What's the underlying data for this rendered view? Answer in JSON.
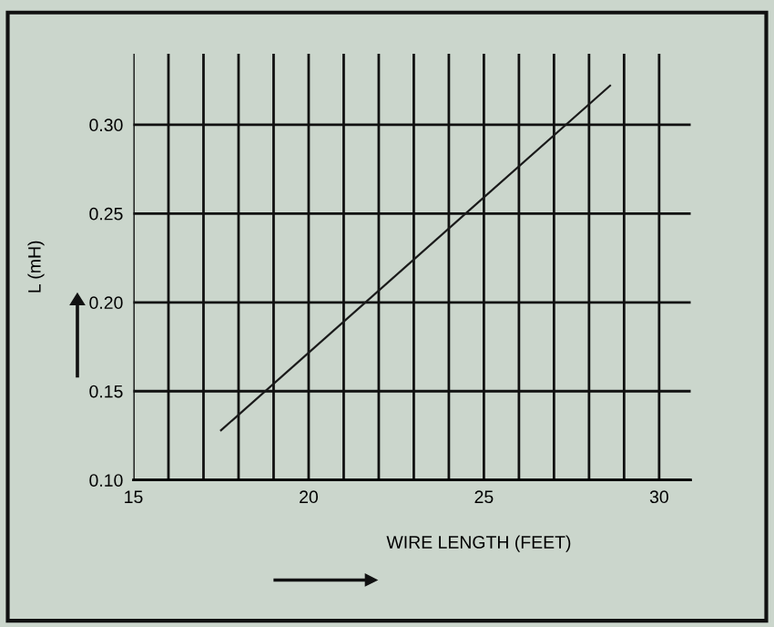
{
  "chart_data": {
    "type": "line",
    "xlabel": "WIRE LENGTH (FEET)",
    "ylabel": "L (mH)",
    "x": [
      17.5,
      28.6
    ],
    "series": [
      {
        "color": "#1a1a1a",
        "values": [
          0.128,
          0.322
        ]
      }
    ],
    "xlim": [
      15,
      30.9
    ],
    "ylim": [
      0.1,
      0.34
    ],
    "xticks": [
      15,
      {
        "value": 16,
        "label": null
      },
      {
        "value": 17,
        "label": null
      },
      {
        "value": 18,
        "label": null
      },
      {
        "value": 19,
        "label": null
      },
      20,
      {
        "value": 21,
        "label": null
      },
      {
        "value": 22,
        "label": null
      },
      {
        "value": 23,
        "label": null
      },
      {
        "value": 24,
        "label": null
      },
      25,
      {
        "value": 26,
        "label": null
      },
      {
        "value": 27,
        "label": null
      },
      {
        "value": 28,
        "label": null
      },
      {
        "value": 29,
        "label": null
      },
      30
    ],
    "yticks": [
      {
        "value": 0.1,
        "label": "0.10"
      },
      {
        "value": 0.15,
        "label": "0.15"
      },
      {
        "value": 0.2,
        "label": "0.20"
      },
      {
        "value": 0.25,
        "label": "0.25"
      },
      {
        "value": 0.3,
        "label": "0.30"
      }
    ],
    "grid": true,
    "marker": "none",
    "line_style": "solid"
  }
}
